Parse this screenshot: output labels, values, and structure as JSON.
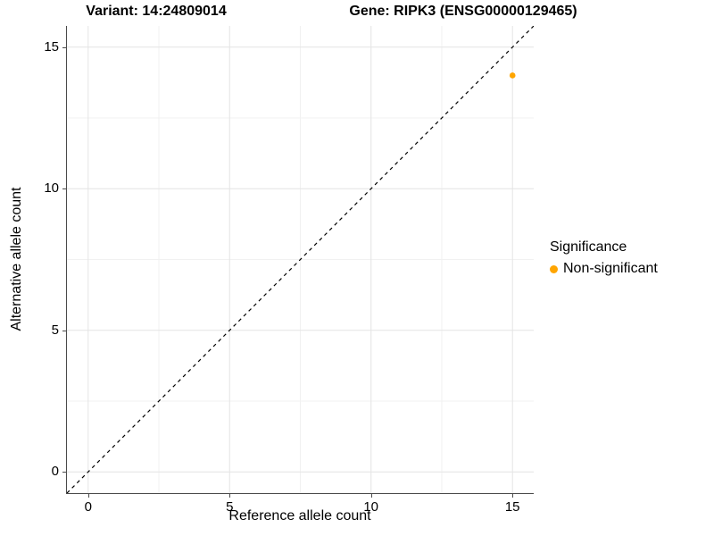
{
  "titles": {
    "left": "Variant: 14:24809014",
    "right": "Gene: RIPK3 (ENSG00000129465)"
  },
  "chart_data": {
    "type": "scatter",
    "title_left": "Variant: 14:24809014",
    "title_right": "Gene: RIPK3 (ENSG00000129465)",
    "xlabel": "Reference allele count",
    "ylabel": "Alternative allele count",
    "xlim": [
      -0.75,
      15.75
    ],
    "ylim": [
      -0.75,
      15.75
    ],
    "x_ticks": [
      0,
      5,
      10,
      15
    ],
    "y_ticks": [
      0,
      5,
      10,
      15
    ],
    "x_minor_ticks": [
      2.5,
      7.5,
      12.5
    ],
    "y_minor_ticks": [
      2.5,
      7.5,
      12.5
    ],
    "grid": "major+minor",
    "points": [
      {
        "x": 15,
        "y": 14,
        "series": "Non-significant"
      }
    ],
    "reference_line": {
      "slope": 1,
      "intercept": 0,
      "style": "dashed"
    },
    "legend": {
      "title": "Significance",
      "position": "right",
      "entries": [
        {
          "label": "Non-significant",
          "color": "#FFA500",
          "marker": "circle"
        }
      ]
    }
  },
  "colors": {
    "point": "#FFA500",
    "grid_major": "#E4E4E4",
    "grid_minor": "#F1F1F1",
    "axis_line": "#4A4A4A",
    "reference_line": "#000000",
    "text": "#000000",
    "background": "#FFFFFF"
  }
}
